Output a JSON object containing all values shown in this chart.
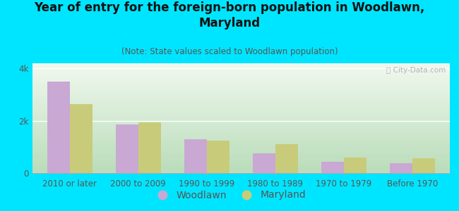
{
  "title": "Year of entry for the foreign-born population in Woodlawn,\nMaryland",
  "subtitle": "(Note: State values scaled to Woodlawn population)",
  "categories": [
    "2010 or later",
    "2000 to 2009",
    "1990 to 1999",
    "1980 to 1989",
    "1970 to 1979",
    "Before 1970"
  ],
  "woodlawn": [
    3500,
    1850,
    1300,
    750,
    430,
    390
  ],
  "maryland": [
    2650,
    1950,
    1250,
    1100,
    580,
    560
  ],
  "woodlawn_color": "#c9a8d4",
  "maryland_color": "#c8cc7a",
  "background_color": "#00e5ff",
  "grad_top": "#f0f8ee",
  "grad_bottom": "#d8eed8",
  "ylim": [
    0,
    4200
  ],
  "yticks": [
    0,
    2000,
    4000
  ],
  "ytick_labels": [
    "0",
    "2k",
    "4k"
  ],
  "watermark": "ⓘ City-Data.com",
  "title_fontsize": 12,
  "subtitle_fontsize": 8.5,
  "legend_fontsize": 10,
  "tick_fontsize": 8.5
}
